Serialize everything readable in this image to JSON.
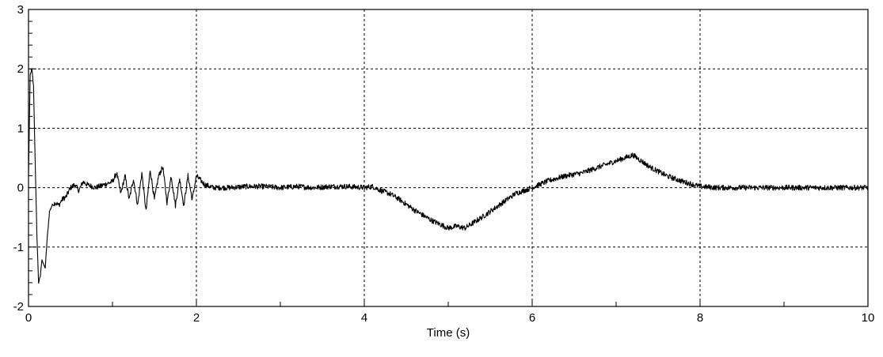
{
  "chart_data": {
    "type": "line",
    "title": "",
    "xlabel": "Time (s)",
    "ylabel": "",
    "xlim": [
      0,
      10
    ],
    "ylim": [
      -2,
      3
    ],
    "x_ticks": [
      0,
      2,
      4,
      6,
      8,
      10
    ],
    "y_ticks": [
      -2,
      -1,
      0,
      1,
      2,
      3
    ],
    "grid": true,
    "grid_style": "dotted",
    "legend": "none",
    "colors": {
      "line": "#000000",
      "grid": "#000000",
      "background": "#ffffff"
    },
    "series": [
      {
        "x": [
          0,
          0.02,
          0.04,
          0.06,
          0.08,
          0.1,
          0.12,
          0.14,
          0.16,
          0.18,
          0.2,
          0.22,
          0.25,
          0.28,
          0.32,
          0.36,
          0.4,
          0.45,
          0.5,
          0.55,
          0.6,
          0.65,
          0.7,
          0.8,
          0.9,
          1.0,
          1.05,
          1.1,
          1.15,
          1.2,
          1.25,
          1.3,
          1.35,
          1.4,
          1.45,
          1.5,
          1.55,
          1.6,
          1.65,
          1.7,
          1.75,
          1.8,
          1.85,
          1.9,
          1.95,
          2.0,
          2.1,
          2.2,
          2.4,
          2.6,
          2.8,
          3.0,
          3.2,
          3.4,
          3.6,
          3.8,
          4.0,
          4.1,
          4.2,
          4.3,
          4.4,
          4.6,
          4.8,
          5.0,
          5.1,
          5.2,
          5.4,
          5.6,
          5.8,
          6.0,
          6.2,
          6.4,
          6.6,
          6.8,
          7.0,
          7.1,
          7.2,
          7.3,
          7.4,
          7.6,
          7.8,
          8.0,
          8.2,
          8.5,
          9.0,
          9.5,
          10.0
        ],
        "y": [
          0.2,
          1.9,
          2.0,
          1.7,
          0.4,
          -0.8,
          -1.6,
          -1.5,
          -1.2,
          -1.3,
          -1.35,
          -0.9,
          -0.4,
          -0.3,
          -0.25,
          -0.3,
          -0.2,
          -0.15,
          0.0,
          0.05,
          -0.05,
          0.1,
          0.05,
          0.0,
          0.05,
          0.1,
          0.25,
          -0.1,
          0.2,
          -0.2,
          0.15,
          -0.3,
          0.25,
          -0.4,
          0.3,
          -0.2,
          0.2,
          0.35,
          -0.25,
          0.2,
          -0.3,
          0.15,
          -0.3,
          0.2,
          -0.2,
          0.2,
          0.05,
          0.0,
          0.0,
          0.02,
          0.02,
          0.0,
          0.02,
          0.0,
          0.02,
          0.02,
          0.0,
          0.02,
          -0.05,
          -0.1,
          -0.18,
          -0.38,
          -0.55,
          -0.68,
          -0.65,
          -0.68,
          -0.5,
          -0.3,
          -0.1,
          0.0,
          0.12,
          0.2,
          0.25,
          0.35,
          0.45,
          0.5,
          0.55,
          0.45,
          0.35,
          0.2,
          0.1,
          0.02,
          0.0,
          0.0,
          0.0,
          0.0,
          0.0
        ]
      }
    ]
  }
}
